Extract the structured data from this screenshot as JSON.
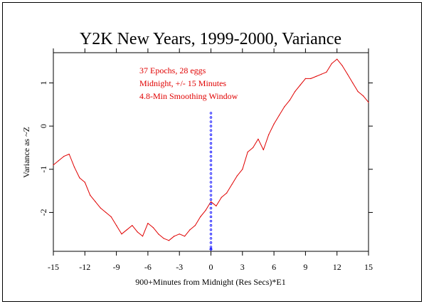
{
  "chart_data": {
    "type": "line",
    "title": "Y2K New Years, 1999-2000, Variance",
    "xlabel": "900+Minutes from Midnight (Res Secs)*E1",
    "ylabel": "Variance as ~Z",
    "annotations": [
      "37 Epochs, 28 eggs",
      "Midnight, +/- 15 Minutes",
      "4.8-Min Smoothing Window"
    ],
    "xlim": [
      -15,
      15
    ],
    "ylim": [
      -2.9,
      1.7
    ],
    "x_ticks": [
      -15,
      -12,
      -9,
      -6,
      -3,
      0,
      3,
      6,
      9,
      12,
      15
    ],
    "x_tick_labels": [
      "-15",
      "-12",
      "-9",
      "-6",
      "-3",
      "0",
      "3",
      "6",
      "9",
      "12",
      "15"
    ],
    "y_ticks": [
      -2,
      -1,
      0,
      1
    ],
    "y_tick_labels": [
      "-2",
      "-1",
      "0",
      "1"
    ],
    "grid": false,
    "midnight_marker_x": 0,
    "series": [
      {
        "color": "#e00000",
        "x": [
          -15,
          -14.5,
          -14,
          -13.5,
          -13,
          -12.5,
          -12,
          -11.5,
          -11,
          -10.5,
          -10,
          -9.5,
          -9,
          -8.5,
          -8,
          -7.5,
          -7,
          -6.5,
          -6,
          -5.5,
          -5,
          -4.5,
          -4,
          -3.5,
          -3,
          -2.5,
          -2,
          -1.5,
          -1,
          -0.5,
          0,
          0.5,
          1,
          1.5,
          2,
          2.5,
          3,
          3.5,
          4,
          4.5,
          5,
          5.5,
          6,
          6.5,
          7,
          7.5,
          8,
          8.5,
          9,
          9.5,
          10,
          10.5,
          11,
          11.5,
          12,
          12.5,
          13,
          13.5,
          14,
          14.5,
          15
        ],
        "y": [
          -0.9,
          -0.8,
          -0.7,
          -0.65,
          -0.95,
          -1.2,
          -1.3,
          -1.6,
          -1.75,
          -1.9,
          -2.0,
          -2.1,
          -2.3,
          -2.5,
          -2.4,
          -2.3,
          -2.45,
          -2.55,
          -2.25,
          -2.35,
          -2.5,
          -2.6,
          -2.65,
          -2.55,
          -2.5,
          -2.55,
          -2.4,
          -2.3,
          -2.1,
          -1.95,
          -1.75,
          -1.85,
          -1.65,
          -1.55,
          -1.35,
          -1.15,
          -1.0,
          -0.6,
          -0.5,
          -0.3,
          -0.55,
          -0.2,
          0.05,
          0.25,
          0.45,
          0.6,
          0.8,
          0.95,
          1.1,
          1.1,
          1.15,
          1.2,
          1.25,
          1.45,
          1.55,
          1.4,
          1.2,
          1.0,
          0.8,
          0.7,
          0.55
        ]
      },
      {
        "color": "#0000ff",
        "marker": "dot",
        "x": [
          0,
          0,
          0,
          0,
          0,
          0,
          0,
          0,
          0,
          0,
          0,
          0,
          0,
          0,
          0,
          0,
          0,
          0,
          0,
          0,
          0,
          0,
          0,
          0,
          0,
          0,
          0,
          0,
          0,
          0,
          0,
          0,
          0,
          0,
          0,
          0,
          0
        ],
        "y": [
          0.3,
          0.2,
          0.1,
          0.0,
          -0.1,
          -0.2,
          -0.3,
          -0.4,
          -0.5,
          -0.6,
          -0.7,
          -0.8,
          -0.9,
          -1.0,
          -1.1,
          -1.2,
          -1.3,
          -1.4,
          -1.5,
          -1.6,
          -1.7,
          -1.8,
          -1.9,
          -2.0,
          -2.1,
          -2.2,
          -2.3,
          -2.4,
          -2.5,
          -2.6,
          -2.7,
          -2.8,
          -2.85,
          -2.85,
          -2.85,
          -2.85,
          -2.85
        ]
      }
    ]
  }
}
